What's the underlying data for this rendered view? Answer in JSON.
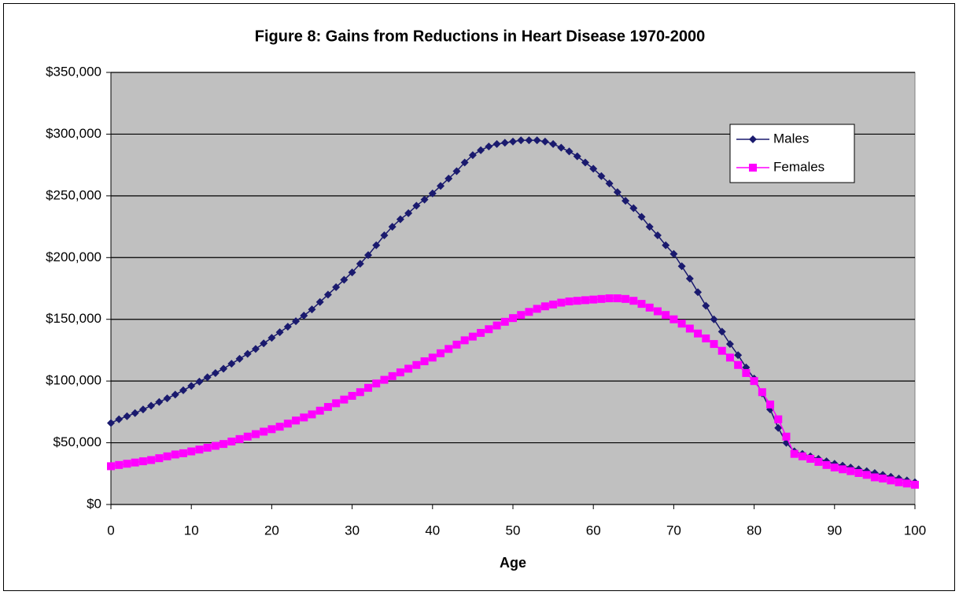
{
  "chart_data": {
    "type": "line",
    "title": "Figure 8: Gains from Reductions in Heart Disease 1970-2000",
    "x_label": "Age",
    "x": [
      0,
      1,
      2,
      3,
      4,
      5,
      6,
      7,
      8,
      9,
      10,
      11,
      12,
      13,
      14,
      15,
      16,
      17,
      18,
      19,
      20,
      21,
      22,
      23,
      24,
      25,
      26,
      27,
      28,
      29,
      30,
      31,
      32,
      33,
      34,
      35,
      36,
      37,
      38,
      39,
      40,
      41,
      42,
      43,
      44,
      45,
      46,
      47,
      48,
      49,
      50,
      51,
      52,
      53,
      54,
      55,
      56,
      57,
      58,
      59,
      60,
      61,
      62,
      63,
      64,
      65,
      66,
      67,
      68,
      69,
      70,
      71,
      72,
      73,
      74,
      75,
      76,
      77,
      78,
      79,
      80,
      81,
      82,
      83,
      84,
      85,
      86,
      87,
      88,
      89,
      90,
      91,
      92,
      93,
      94,
      95,
      96,
      97,
      98,
      99,
      100
    ],
    "series": [
      {
        "name": "Males",
        "color": "#1a1a6e",
        "marker": "diamond",
        "values": [
          66000,
          69000,
          71500,
          74000,
          77000,
          80000,
          83000,
          86000,
          89000,
          92500,
          96000,
          99500,
          103000,
          106500,
          110000,
          114000,
          118000,
          122000,
          126000,
          130500,
          135000,
          139500,
          144000,
          148500,
          153000,
          158000,
          164000,
          170000,
          176000,
          182000,
          188000,
          195000,
          202000,
          210000,
          218000,
          225000,
          231000,
          236000,
          242000,
          247000,
          252000,
          258000,
          264000,
          270000,
          277000,
          283000,
          287000,
          290000,
          292000,
          293000,
          294000,
          295000,
          295000,
          295000,
          294000,
          292000,
          289000,
          286000,
          282000,
          277000,
          272000,
          266000,
          260000,
          253000,
          246000,
          240000,
          233000,
          225000,
          218000,
          210000,
          203000,
          193000,
          183000,
          172000,
          161000,
          150000,
          140000,
          130000,
          121000,
          111000,
          102000,
          90000,
          77000,
          62000,
          50000,
          43000,
          41000,
          39000,
          37000,
          35000,
          33000,
          31500,
          30000,
          28500,
          27000,
          25500,
          24000,
          22500,
          21000,
          19500,
          18000
        ]
      },
      {
        "name": "Females",
        "color": "#ff00ff",
        "marker": "square",
        "values": [
          31000,
          32000,
          33000,
          34000,
          35000,
          36000,
          37500,
          39000,
          40500,
          41500,
          43000,
          44500,
          46000,
          47500,
          49000,
          51000,
          53000,
          55000,
          57000,
          59000,
          61000,
          63000,
          65500,
          68000,
          70500,
          73000,
          76000,
          79000,
          82000,
          85000,
          88000,
          91000,
          94500,
          98000,
          101000,
          104000,
          107000,
          110000,
          113000,
          116000,
          119000,
          122500,
          126000,
          129500,
          133000,
          136000,
          139000,
          142000,
          145000,
          148000,
          151000,
          153500,
          156000,
          158500,
          160500,
          162000,
          163500,
          164500,
          165000,
          165500,
          166000,
          166500,
          167000,
          167000,
          166500,
          165000,
          162500,
          159500,
          156500,
          153500,
          150000,
          146500,
          142500,
          138500,
          134500,
          130000,
          124500,
          119000,
          113000,
          106500,
          100000,
          91000,
          81000,
          69000,
          55000,
          41000,
          39000,
          37000,
          34500,
          32000,
          30000,
          28500,
          27000,
          25500,
          24000,
          22000,
          21000,
          19500,
          18000,
          17000,
          16000
        ]
      }
    ],
    "xlim": [
      0,
      100
    ],
    "xticks": [
      0,
      10,
      20,
      30,
      40,
      50,
      60,
      70,
      80,
      90,
      100
    ],
    "ylim": [
      0,
      350000
    ],
    "yticks": [
      {
        "value": 0,
        "label": "$0"
      },
      {
        "value": 50000,
        "label": "$50,000"
      },
      {
        "value": 100000,
        "label": "$100,000"
      },
      {
        "value": 150000,
        "label": "$150,000"
      },
      {
        "value": 200000,
        "label": "$200,000"
      },
      {
        "value": 250000,
        "label": "$250,000"
      },
      {
        "value": 300000,
        "label": "$300,000"
      },
      {
        "value": 350000,
        "label": "$350,000"
      }
    ],
    "grid": true,
    "plot_background": "#c0c0c0",
    "legend_position": "upper-right"
  }
}
